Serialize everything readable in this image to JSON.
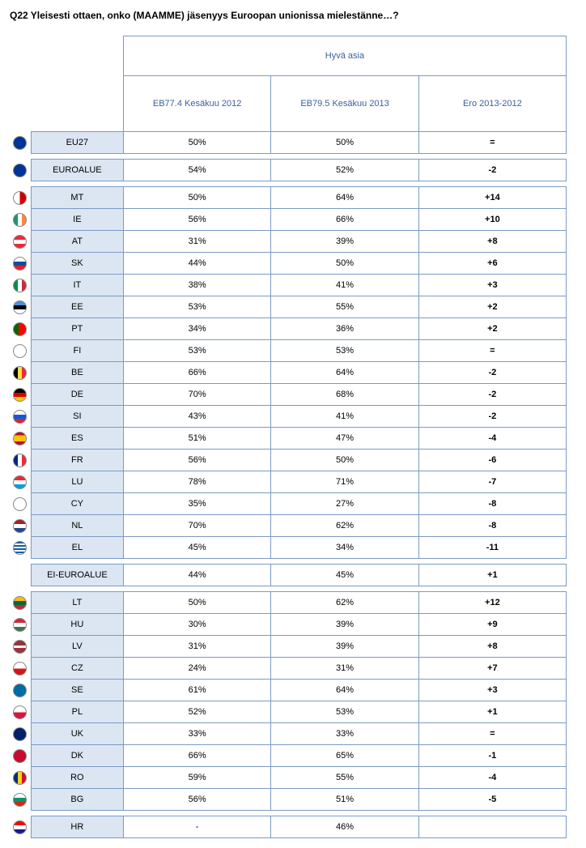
{
  "title": "Q22 Yleisesti ottaen, onko (MAAMME) jäsenyys Euroopan unionissa mielestänne…?",
  "header": {
    "top": "Hyvä asia",
    "col1": "EB77.4 Kesäkuu 2012",
    "col2": "EB79.5 Kesäkuu 2013",
    "col3": "Ero 2013-2012"
  },
  "colors": {
    "border": "#7b9ac5",
    "header_text": "#3b5fa0",
    "label_bg": "#dce6f2",
    "data_bg": "#ffffff"
  },
  "flags": {
    "EU27": "background:#003399;",
    "EUROALUE": "background:#003399;",
    "MT": "background:linear-gradient(to right,#fff 50%,#ce0000 50%);",
    "IE": "background:linear-gradient(to right,#169b62 33%,#fff 33% 66%,#ff883e 66%);",
    "AT": "background:linear-gradient(#ed2939 33%,#fff 33% 66%,#ed2939 66%);",
    "SK": "background:linear-gradient(#fff 33%,#0b4ea2 33% 66%,#ee1c25 66%);",
    "IT": "background:linear-gradient(to right,#009246 33%,#fff 33% 66%,#ce2b37 66%);",
    "EE": "background:linear-gradient(#4891d9 33%,#000 33% 66%,#fff 66%);",
    "PT": "background:linear-gradient(to right,#006600 40%,#ff0000 40%);",
    "FI": "background:#fff;",
    "BE": "background:linear-gradient(to right,#000 33%,#fae042 33% 66%,#ed2939 66%);",
    "DE": "background:linear-gradient(#000 33%,#dd0000 33% 66%,#ffce00 66%);",
    "SI": "background:linear-gradient(#fff 33%,#005ce5 33% 66%,#ed1c24 66%);",
    "ES": "background:linear-gradient(#c60b1e 25%,#ffc400 25% 75%,#c60b1e 75%);",
    "FR": "background:linear-gradient(to right,#002395 33%,#fff 33% 66%,#ed2939 66%);",
    "LU": "background:linear-gradient(#ed2939 33%,#fff 33% 66%,#00a1de 66%);",
    "CY": "background:#fff;",
    "NL": "background:linear-gradient(#ae1c28 33%,#fff 33% 66%,#21468b 66%);",
    "EL": "background:repeating-linear-gradient(#0d5eaf 0 2px,#fff 2px 4px);",
    "EI-EUROALUE": "",
    "LT": "background:linear-gradient(#fdb913 33%,#006a44 33% 66%,#c1272d 66%);",
    "HU": "background:linear-gradient(#cd2a3e 33%,#fff 33% 66%,#436f4d 66%);",
    "LV": "background:linear-gradient(#9e3039 40%,#fff 40% 60%,#9e3039 60%);",
    "CZ": "background:linear-gradient(#fff 50%,#d7141a 50%);",
    "SE": "background:#006aa7;",
    "PL": "background:linear-gradient(#fff 50%,#dc143c 50%);",
    "UK": "background:#012169;",
    "DK": "background:#c60c30;",
    "RO": "background:linear-gradient(to right,#002b7f 33%,#fcd116 33% 66%,#ce1126 66%);",
    "BG": "background:linear-gradient(#fff 33%,#00966e 33% 66%,#d62612 66%);",
    "HR": "background:linear-gradient(#ff0000 33%,#fff 33% 66%,#171796 66%);"
  },
  "groups": [
    {
      "rows": [
        {
          "flag": "EU27",
          "label": "EU27",
          "v1": "50%",
          "v2": "50%",
          "diff": "="
        }
      ]
    },
    {
      "rows": [
        {
          "flag": "EUROALUE",
          "label": "EUROALUE",
          "v1": "54%",
          "v2": "52%",
          "diff": "-2"
        }
      ]
    },
    {
      "rows": [
        {
          "flag": "MT",
          "label": "MT",
          "v1": "50%",
          "v2": "64%",
          "diff": "+14"
        },
        {
          "flag": "IE",
          "label": "IE",
          "v1": "56%",
          "v2": "66%",
          "diff": "+10"
        },
        {
          "flag": "AT",
          "label": "AT",
          "v1": "31%",
          "v2": "39%",
          "diff": "+8"
        },
        {
          "flag": "SK",
          "label": "SK",
          "v1": "44%",
          "v2": "50%",
          "diff": "+6"
        },
        {
          "flag": "IT",
          "label": "IT",
          "v1": "38%",
          "v2": "41%",
          "diff": "+3"
        },
        {
          "flag": "EE",
          "label": "EE",
          "v1": "53%",
          "v2": "55%",
          "diff": "+2"
        },
        {
          "flag": "PT",
          "label": "PT",
          "v1": "34%",
          "v2": "36%",
          "diff": "+2"
        },
        {
          "flag": "FI",
          "label": "FI",
          "v1": "53%",
          "v2": "53%",
          "diff": "="
        },
        {
          "flag": "BE",
          "label": "BE",
          "v1": "66%",
          "v2": "64%",
          "diff": "-2"
        },
        {
          "flag": "DE",
          "label": "DE",
          "v1": "70%",
          "v2": "68%",
          "diff": "-2"
        },
        {
          "flag": "SI",
          "label": "SI",
          "v1": "43%",
          "v2": "41%",
          "diff": "-2"
        },
        {
          "flag": "ES",
          "label": "ES",
          "v1": "51%",
          "v2": "47%",
          "diff": "-4"
        },
        {
          "flag": "FR",
          "label": "FR",
          "v1": "56%",
          "v2": "50%",
          "diff": "-6"
        },
        {
          "flag": "LU",
          "label": "LU",
          "v1": "78%",
          "v2": "71%",
          "diff": "-7"
        },
        {
          "flag": "CY",
          "label": "CY",
          "v1": "35%",
          "v2": "27%",
          "diff": "-8"
        },
        {
          "flag": "NL",
          "label": "NL",
          "v1": "70%",
          "v2": "62%",
          "diff": "-8"
        },
        {
          "flag": "EL",
          "label": "EL",
          "v1": "45%",
          "v2": "34%",
          "diff": "-11"
        }
      ]
    },
    {
      "rows": [
        {
          "flag": "EI-EUROALUE",
          "label": "EI-EUROALUE",
          "v1": "44%",
          "v2": "45%",
          "diff": "+1",
          "noflag": true
        }
      ]
    },
    {
      "rows": [
        {
          "flag": "LT",
          "label": "LT",
          "v1": "50%",
          "v2": "62%",
          "diff": "+12"
        },
        {
          "flag": "HU",
          "label": "HU",
          "v1": "30%",
          "v2": "39%",
          "diff": "+9"
        },
        {
          "flag": "LV",
          "label": "LV",
          "v1": "31%",
          "v2": "39%",
          "diff": "+8"
        },
        {
          "flag": "CZ",
          "label": "CZ",
          "v1": "24%",
          "v2": "31%",
          "diff": "+7"
        },
        {
          "flag": "SE",
          "label": "SE",
          "v1": "61%",
          "v2": "64%",
          "diff": "+3"
        },
        {
          "flag": "PL",
          "label": "PL",
          "v1": "52%",
          "v2": "53%",
          "diff": "+1"
        },
        {
          "flag": "UK",
          "label": "UK",
          "v1": "33%",
          "v2": "33%",
          "diff": "="
        },
        {
          "flag": "DK",
          "label": "DK",
          "v1": "66%",
          "v2": "65%",
          "diff": "-1"
        },
        {
          "flag": "RO",
          "label": "RO",
          "v1": "59%",
          "v2": "55%",
          "diff": "-4"
        },
        {
          "flag": "BG",
          "label": "BG",
          "v1": "56%",
          "v2": "51%",
          "diff": "-5"
        }
      ]
    },
    {
      "rows": [
        {
          "flag": "HR",
          "label": "HR",
          "v1": "-",
          "v2": "46%",
          "diff": ""
        }
      ]
    }
  ]
}
